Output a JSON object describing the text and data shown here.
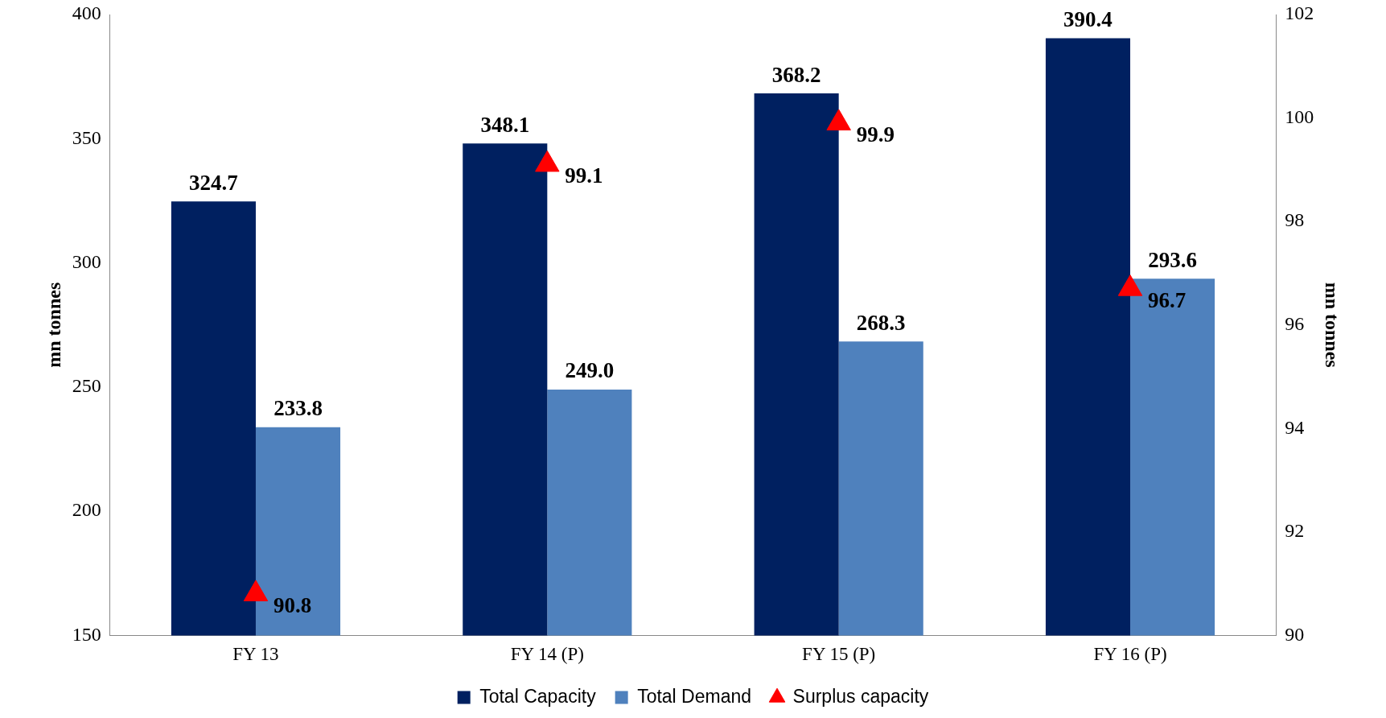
{
  "chart_data": {
    "type": "bar",
    "categories": [
      "FY 13",
      "FY 14 (P)",
      "FY 15 (P)",
      "FY 16 (P)"
    ],
    "series": [
      {
        "name": "Total Capacity",
        "color": "#002060",
        "values": [
          324.7,
          348.1,
          368.2,
          390.4
        ],
        "value_labels": [
          "324.7",
          "348.1",
          "368.2",
          "390.4"
        ]
      },
      {
        "name": "Total Demand",
        "color": "#4f81bd",
        "values": [
          233.8,
          249.0,
          268.3,
          293.6
        ],
        "value_labels": [
          "233.8",
          "249.0",
          "268.3",
          "293.6"
        ]
      },
      {
        "name": "Surplus capacity",
        "type": "scatter",
        "axis": "y2",
        "marker": "triangle",
        "color": "#ff0000",
        "values": [
          90.8,
          99.1,
          99.9,
          96.7
        ],
        "value_labels": [
          "90.8",
          "99.1",
          "99.9",
          "96.7"
        ]
      }
    ],
    "ylabel": "mn tonnes",
    "y2label": "mn tonnes",
    "ylim": [
      150,
      400
    ],
    "yticks": [
      150,
      200,
      250,
      300,
      350,
      400
    ],
    "y2lim": [
      90,
      102
    ],
    "y2ticks": [
      90,
      92,
      94,
      96,
      98,
      100,
      102
    ],
    "legend": "bottom",
    "grid": false
  }
}
